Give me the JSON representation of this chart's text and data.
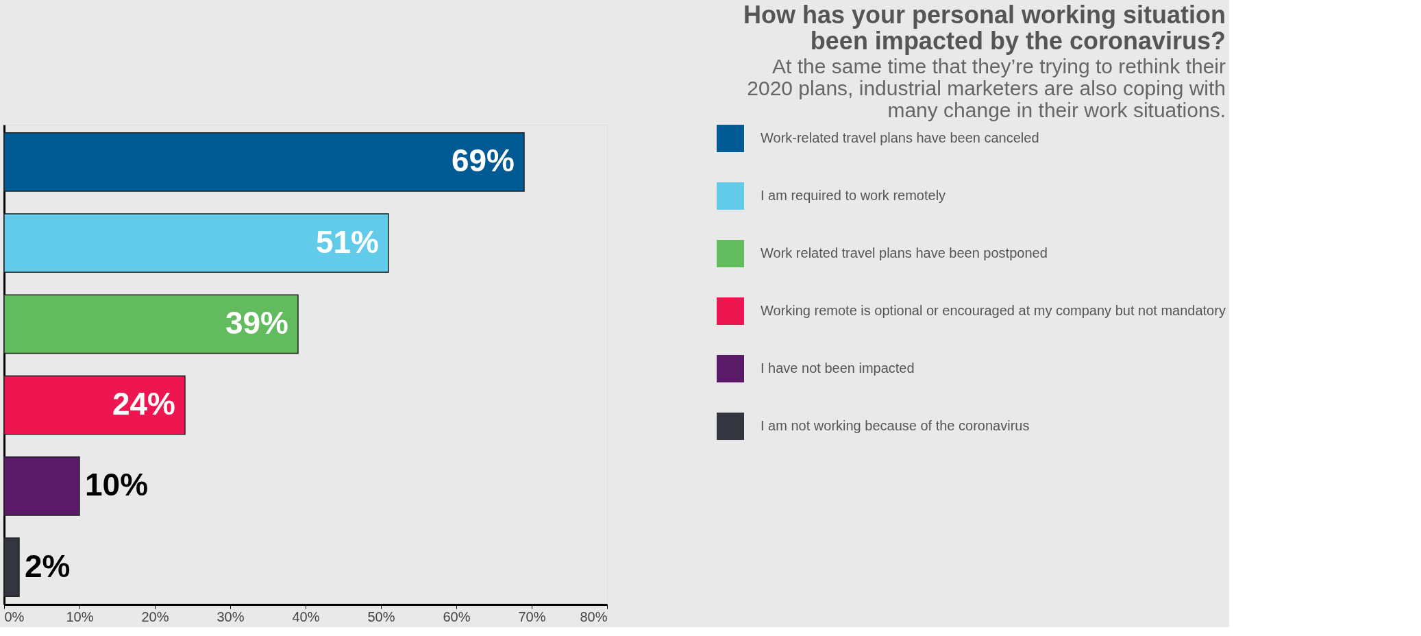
{
  "chart_data": {
    "type": "bar",
    "orientation": "horizontal",
    "title": [
      "How has your personal working situation",
      "been impacted by the coronavirus?"
    ],
    "subtitle": [
      "At the same time that they’re trying to rethink their",
      "2020 plans, industrial marketers are also coping with",
      "many change in their work situations."
    ],
    "categories": [
      null,
      null,
      null,
      null,
      null,
      null
    ],
    "series": [
      {
        "name": "Work-related travel plans have been canceled",
        "color": "#005a93",
        "values": [
          69,
          null,
          null,
          null,
          null,
          null
        ],
        "value_labels": [
          "69%",
          null,
          null,
          null,
          null,
          null
        ]
      },
      {
        "name": "I am required to work remotely",
        "color": "#62cbea",
        "values": [
          null,
          51,
          null,
          null,
          null,
          null
        ],
        "value_labels": [
          null,
          "51%",
          null,
          null,
          null,
          null
        ]
      },
      {
        "name": "Work related travel plans have been postponed",
        "color": "#62bb5d",
        "values": [
          null,
          null,
          39,
          null,
          null,
          null
        ],
        "value_labels": [
          null,
          null,
          "39%",
          null,
          null,
          null
        ]
      },
      {
        "name": "Working remote is optional or encouraged at my company but not mandatory",
        "color": "#ed1651",
        "values": [
          null,
          null,
          null,
          24,
          null,
          null
        ],
        "value_labels": [
          null,
          null,
          null,
          "24%",
          null,
          null
        ]
      },
      {
        "name": "I have not been impacted",
        "color": "#5b1a67",
        "values": [
          null,
          null,
          null,
          null,
          10,
          null
        ],
        "value_labels": [
          null,
          null,
          null,
          null,
          "10%",
          null
        ]
      },
      {
        "name": "I am not working because of the coronavirus",
        "color": "#34363f",
        "values": [
          null,
          null,
          null,
          null,
          null,
          2
        ],
        "value_labels": [
          null,
          null,
          null,
          null,
          null,
          "2%"
        ]
      }
    ],
    "xlim": [
      0,
      80
    ],
    "xticks": [
      {
        "value": 0,
        "label": "0%"
      },
      {
        "value": 10,
        "label": "10%"
      },
      {
        "value": 20,
        "label": "20%"
      },
      {
        "value": 30,
        "label": "30%"
      },
      {
        "value": 40,
        "label": "40%"
      },
      {
        "value": 50,
        "label": "50%"
      },
      {
        "value": 60,
        "label": "60%"
      },
      {
        "value": 70,
        "label": "70%"
      },
      {
        "value": 80,
        "label": "80%"
      }
    ],
    "tick_labels": "x",
    "grid": false,
    "legend": "right"
  }
}
